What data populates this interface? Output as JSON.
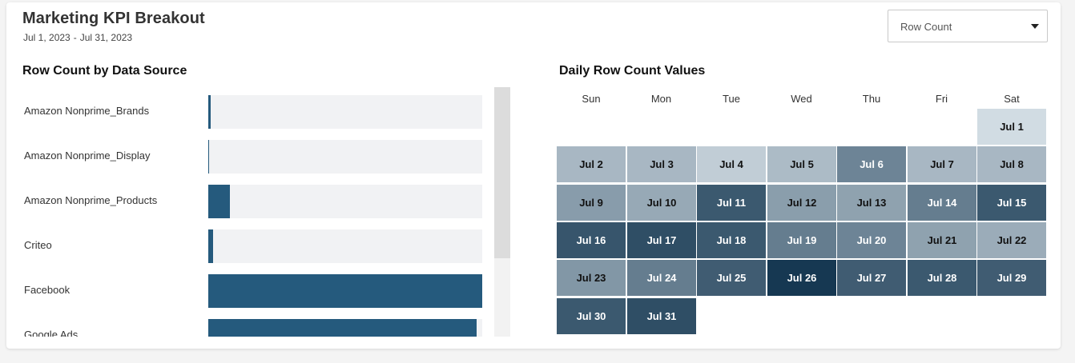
{
  "header": {
    "title": "Marketing KPI Breakout",
    "date_start": "Jul 1, 2023",
    "date_sep": "-",
    "date_end": "Jul 31, 2023"
  },
  "metric_select": {
    "value": "Row Count"
  },
  "bar_chart": {
    "title": "Row Count by Data Source"
  },
  "calendar": {
    "title": "Daily Row Count Values",
    "weekdays": [
      "Sun",
      "Mon",
      "Tue",
      "Wed",
      "Thu",
      "Fri",
      "Sat"
    ]
  },
  "chart_data": [
    {
      "type": "bar",
      "title": "Row Count by Data Source",
      "categories": [
        "Amazon Nonprime_Brands",
        "Amazon Nonprime_Display",
        "Amazon Nonprime_Products",
        "Criteo",
        "Facebook",
        "Google Ads"
      ],
      "values": [
        0.008,
        0.003,
        0.08,
        0.018,
        1.0,
        0.98
      ],
      "value_note": "relative to the largest visible bar"
    },
    {
      "type": "heatmap",
      "title": "Daily Row Count Values",
      "start_weekday": 6,
      "days": [
        {
          "label": "Jul 1",
          "level": 0.1
        },
        {
          "label": "Jul 2",
          "level": 0.3
        },
        {
          "label": "Jul 3",
          "level": 0.3
        },
        {
          "label": "Jul 4",
          "level": 0.18
        },
        {
          "label": "Jul 5",
          "level": 0.28
        },
        {
          "label": "Jul 6",
          "level": 0.58
        },
        {
          "label": "Jul 7",
          "level": 0.3
        },
        {
          "label": "Jul 8",
          "level": 0.3
        },
        {
          "label": "Jul 9",
          "level": 0.45
        },
        {
          "label": "Jul 10",
          "level": 0.38
        },
        {
          "label": "Jul 11",
          "level": 0.82
        },
        {
          "label": "Jul 12",
          "level": 0.44
        },
        {
          "label": "Jul 13",
          "level": 0.42
        },
        {
          "label": "Jul 14",
          "level": 0.62
        },
        {
          "label": "Jul 15",
          "level": 0.82
        },
        {
          "label": "Jul 16",
          "level": 0.84
        },
        {
          "label": "Jul 17",
          "level": 0.88
        },
        {
          "label": "Jul 18",
          "level": 0.82
        },
        {
          "label": "Jul 19",
          "level": 0.62
        },
        {
          "label": "Jul 20",
          "level": 0.58
        },
        {
          "label": "Jul 21",
          "level": 0.42
        },
        {
          "label": "Jul 22",
          "level": 0.36
        },
        {
          "label": "Jul 23",
          "level": 0.48
        },
        {
          "label": "Jul 24",
          "level": 0.62
        },
        {
          "label": "Jul 25",
          "level": 0.8
        },
        {
          "label": "Jul 26",
          "level": 1.0
        },
        {
          "label": "Jul 27",
          "level": 0.8
        },
        {
          "label": "Jul 28",
          "level": 0.82
        },
        {
          "label": "Jul 29",
          "level": 0.8
        },
        {
          "label": "Jul 30",
          "level": 0.82
        },
        {
          "label": "Jul 31",
          "level": 0.88
        }
      ],
      "color_low": "#e6eef3",
      "color_high": "#163852"
    }
  ],
  "colors": {
    "bar": "#255a7d",
    "track": "#f1f2f4"
  }
}
